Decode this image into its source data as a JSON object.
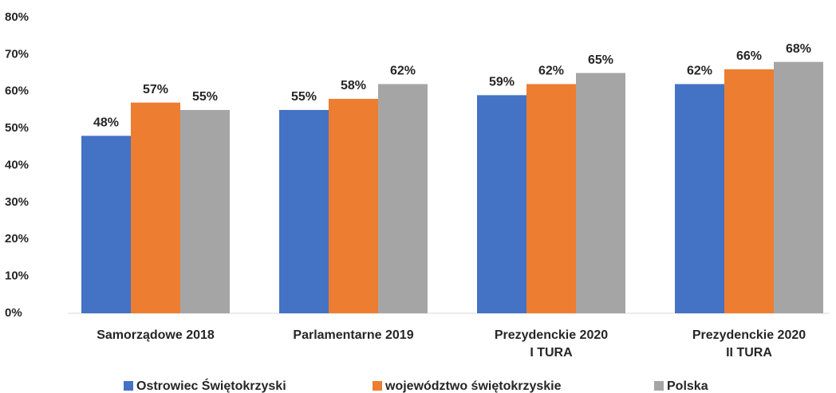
{
  "chart_data": {
    "type": "bar",
    "categories": [
      "Samorządowe 2018",
      "Parlamentarne 2019",
      "Prezydenckie 2020\nI TURA",
      "Prezydenckie 2020\nII TURA"
    ],
    "series": [
      {
        "name": "Ostrowiec Świętokrzyski",
        "color": "#4472c4",
        "values": [
          48,
          55,
          59,
          62
        ],
        "value_labels": [
          "48%",
          "55%",
          "59%",
          "62%"
        ]
      },
      {
        "name": "województwo świętokrzyskie",
        "color": "#ed7d31",
        "values": [
          57,
          58,
          62,
          66
        ],
        "value_labels": [
          "57%",
          "58%",
          "62%",
          "66%"
        ]
      },
      {
        "name": "Polska",
        "color": "#a5a5a5",
        "values": [
          55,
          62,
          65,
          68
        ],
        "value_labels": [
          "55%",
          "62%",
          "65%",
          "68%"
        ]
      }
    ],
    "ylim": [
      0,
      80
    ],
    "yticks": [
      {
        "value": 0,
        "label": "0%"
      },
      {
        "value": 10,
        "label": "10%"
      },
      {
        "value": 20,
        "label": "20%"
      },
      {
        "value": 30,
        "label": "30%"
      },
      {
        "value": 40,
        "label": "40%"
      },
      {
        "value": 50,
        "label": "50%"
      },
      {
        "value": 60,
        "label": "60%"
      },
      {
        "value": 70,
        "label": "70%"
      },
      {
        "value": 80,
        "label": "80%"
      }
    ],
    "grid": false,
    "legend": "bottom"
  }
}
